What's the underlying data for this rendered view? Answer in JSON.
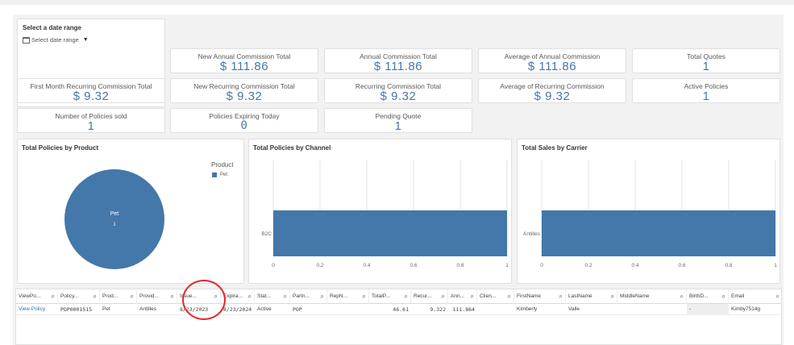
{
  "filter": {
    "title": "Select a date range",
    "placeholder": "Select date range"
  },
  "kpis": {
    "new_annual": {
      "label": "New Annual Commission Total",
      "value": "$ 111.86"
    },
    "annual": {
      "label": "Annual Commission Total",
      "value": "$ 111.86"
    },
    "avg_annual": {
      "label": "Average of Annual Commission",
      "value": "$ 111.86"
    },
    "total_quotes": {
      "label": "Total Quotes",
      "value": "1"
    },
    "first_month": {
      "label": "First Month Recurring Commission Total",
      "value": "$ 9.32"
    },
    "new_recurring": {
      "label": "New Recurring Commission Total",
      "value": "$ 9.32"
    },
    "recurring": {
      "label": "Recurring Commission Total",
      "value": "$ 9.32"
    },
    "avg_recurring": {
      "label": "Average of Recurring Commission",
      "value": "$ 9.32"
    },
    "active_policies": {
      "label": "Active Policies",
      "value": "1"
    },
    "policies_sold": {
      "label": "Number of Policies sold",
      "value": "1"
    },
    "expiring_today": {
      "label": "Policies Expiring Today",
      "value": "0"
    },
    "pending_quote": {
      "label": "Pending Quote",
      "value": "1"
    }
  },
  "charts": {
    "product": {
      "title": "Total Policies by Product",
      "legend_title": "Product",
      "legend_item": "Pet",
      "slice_label": "Pet",
      "slice_value": "1"
    },
    "channel": {
      "title": "Total Policies by Channel",
      "category": "B2C"
    },
    "carrier": {
      "title": "Total Sales by Carrier",
      "category": "Antilles"
    }
  },
  "chart_data": [
    {
      "type": "pie",
      "title": "Total Policies by Product",
      "categories": [
        "Pet"
      ],
      "values": [
        1
      ],
      "legend": "top-right"
    },
    {
      "type": "bar",
      "orientation": "horizontal",
      "title": "Total Policies by Channel",
      "categories": [
        "B2C"
      ],
      "values": [
        1
      ],
      "xlim": [
        0,
        1
      ],
      "ticks": [
        "0",
        "0.2",
        "0.4",
        "0.6",
        "0.8",
        "1"
      ]
    },
    {
      "type": "bar",
      "orientation": "horizontal",
      "title": "Total Sales by Carrier",
      "categories": [
        "Antilles"
      ],
      "values": [
        1
      ],
      "xlim": [
        0,
        1
      ],
      "ticks": [
        "0",
        "0.2",
        "0.4",
        "0.6",
        "0.8",
        "1"
      ]
    }
  ],
  "table": {
    "headers": [
      "ViewPo...",
      "Policy...",
      "Prod...",
      "Provid...",
      "Issue...",
      "Expira...",
      "Stat...",
      "Partn...",
      "RepN...",
      "TotalP...",
      "Recur...",
      "Ann...",
      "Clien...",
      "FirstName",
      "LastName",
      "MiddleName",
      "BirthD...",
      "Email"
    ],
    "row": [
      "View Policy",
      "POP0001515",
      "Pet",
      "Antilles",
      "8/23/2023",
      "8/23/2024",
      "Active",
      "POP",
      "",
      "46.61",
      "9.322",
      "111.864",
      "",
      "Kimberly",
      "Valle",
      "",
      "-",
      "Kimby7514g"
    ]
  },
  "colors": {
    "accent": "#4477aa",
    "annotation": "#e3262d",
    "link": "#2a6ebb"
  }
}
